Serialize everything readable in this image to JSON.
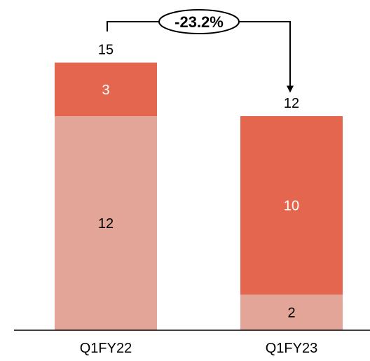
{
  "chart_data": {
    "type": "bar",
    "stacked": true,
    "categories": [
      "Q1FY22",
      "Q1FY23"
    ],
    "series": [
      {
        "values": [
          12,
          2
        ],
        "color": "#E3A597"
      },
      {
        "values": [
          3,
          10
        ],
        "color": "#E4664F"
      }
    ],
    "totals": [
      "15",
      "12"
    ],
    "segment_labels": [
      [
        "12",
        "3"
      ],
      [
        "2",
        "10"
      ]
    ],
    "change_label": "-23.2%",
    "xlabel": "",
    "ylabel": ""
  }
}
